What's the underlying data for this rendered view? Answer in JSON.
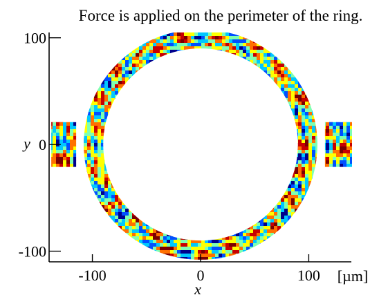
{
  "chart_data": {
    "type": "heatmap",
    "title": "Force is applied on the perimeter of the ring.",
    "xlabel": "x",
    "ylabel": "y",
    "x_unit": "[µm]",
    "xlim": [
      -140,
      140
    ],
    "ylim": [
      -110,
      105
    ],
    "x_ticks": [
      {
        "value": -100,
        "label": "-100"
      },
      {
        "value": 0,
        "label": "0"
      },
      {
        "value": 100,
        "label": "100"
      }
    ],
    "y_ticks": [
      {
        "value": 100,
        "label": "100"
      },
      {
        "value": 0,
        "label": "0"
      },
      {
        "value": -100,
        "label": "-100"
      }
    ],
    "ring": {
      "center": [
        0,
        0
      ],
      "outer_radius": 108,
      "inner_radius": 90
    },
    "side_pads": [
      {
        "x_min": -138,
        "x_max": -115,
        "y_min": -21,
        "y_max": 21
      },
      {
        "x_min": 115,
        "x_max": 140,
        "y_min": -21,
        "y_max": 21
      }
    ],
    "colormap": [
      "#00008b",
      "#0050ff",
      "#00c8ff",
      "#7fffb0",
      "#ffff00",
      "#ff7000",
      "#c80000",
      "#7a0000"
    ],
    "grid": false
  }
}
